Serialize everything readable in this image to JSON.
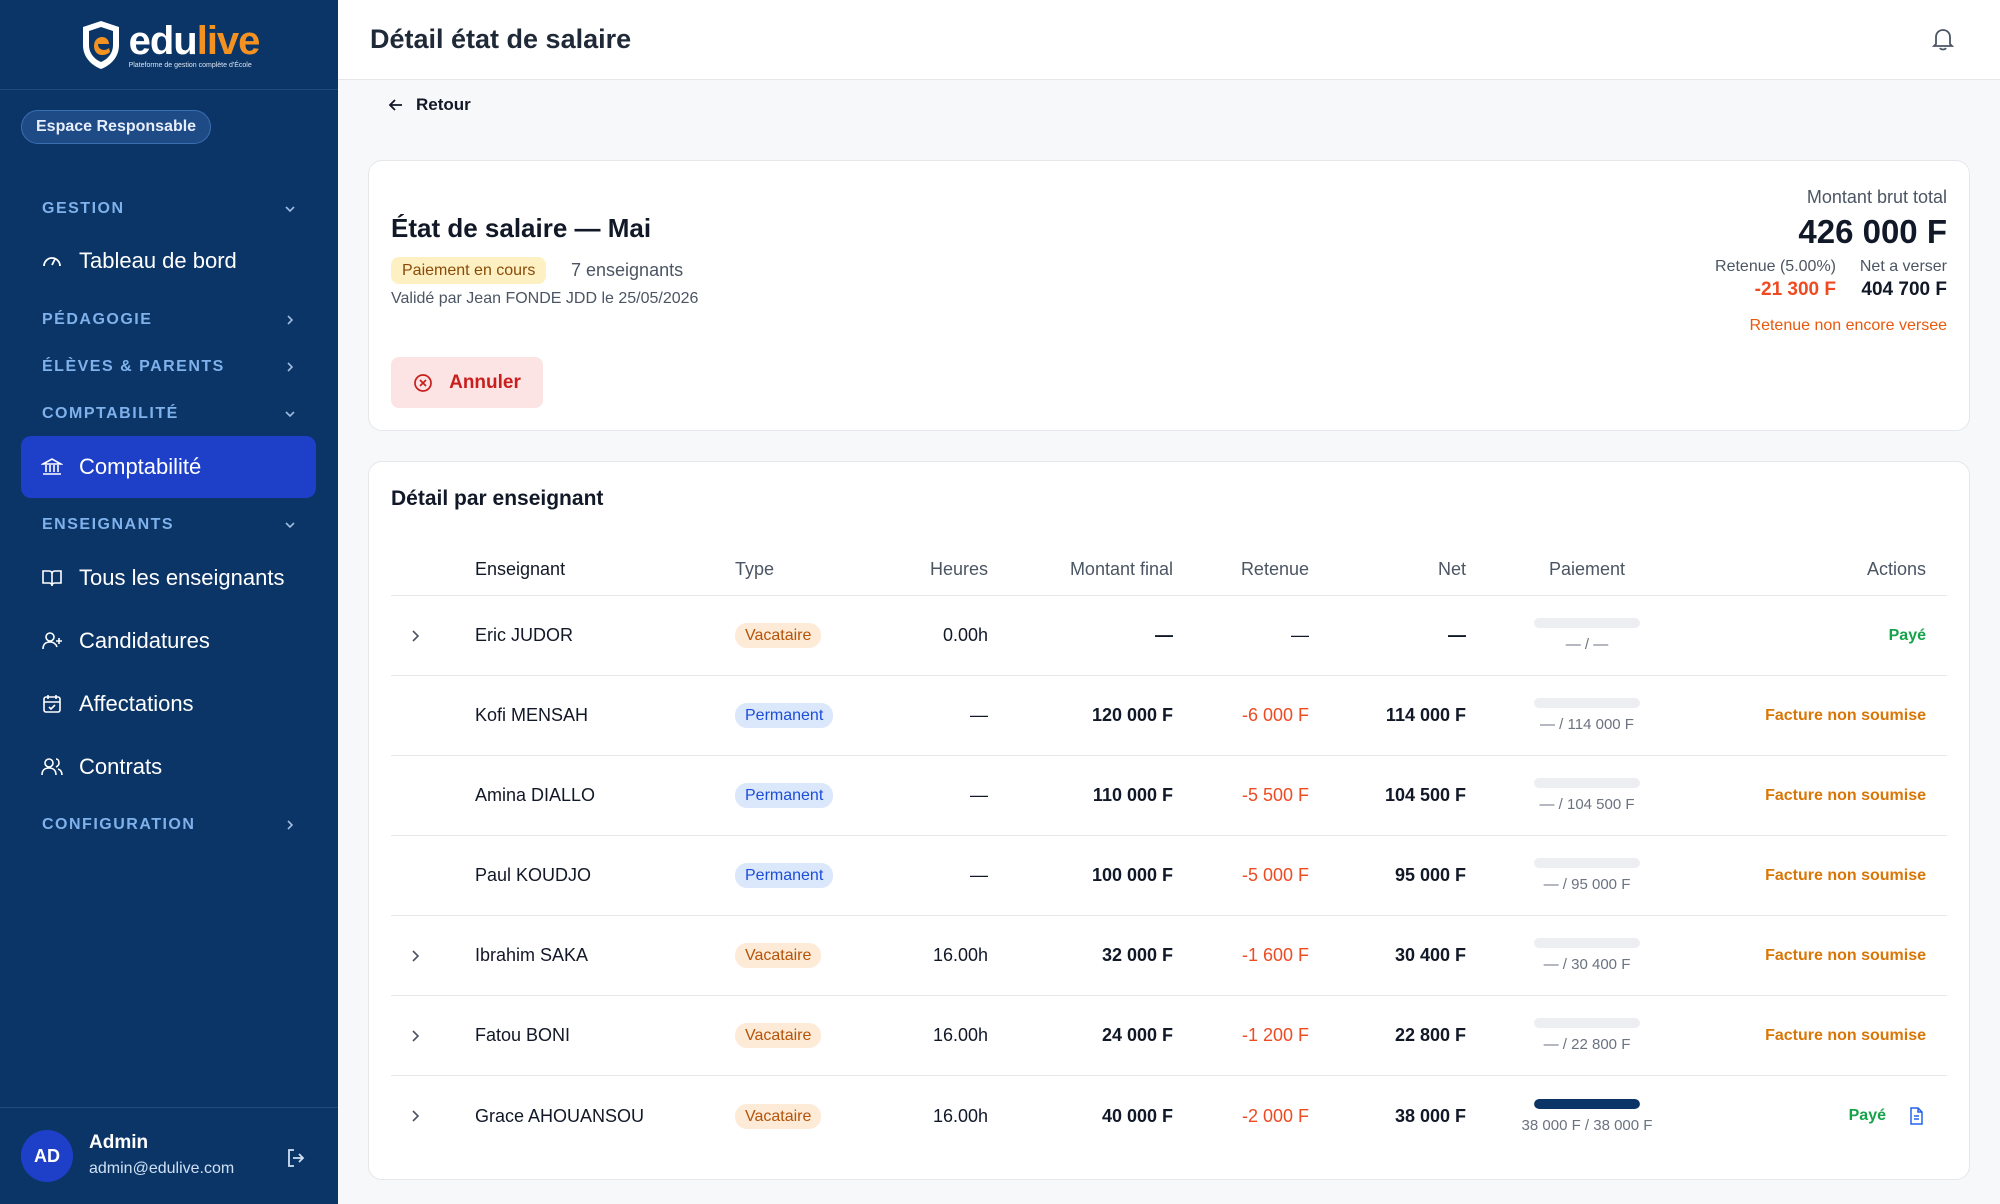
{
  "brand": {
    "name_part1": "edu",
    "name_part2": "live",
    "tagline": "Plateforme de gestion complète d'École"
  },
  "sidebar": {
    "space_badge": "Espace Responsable",
    "sections": {
      "gestion": "GESTION",
      "pedagogie": "PÉDAGOGIE",
      "eleves": "ÉLÈVES & PARENTS",
      "comptabilite": "COMPTABILITÉ",
      "enseignants": "ENSEIGNANTS",
      "configuration": "CONFIGURATION"
    },
    "items": {
      "tableau": "Tableau de bord",
      "comptabilite": "Comptabilité",
      "tous": "Tous les enseignants",
      "candidatures": "Candidatures",
      "affectations": "Affectations",
      "contrats": "Contrats"
    },
    "user": {
      "initials": "AD",
      "name": "Admin",
      "email": "admin@edulive.com"
    }
  },
  "header": {
    "title": "Détail état de salaire"
  },
  "back_label": "Retour",
  "summary": {
    "title": "État de salaire — Mai",
    "status": "Paiement en cours",
    "teacher_count": "7 enseignants",
    "validated_by": "Validé par Jean FONDE JDD le 25/05/2026",
    "cancel_label": "Annuler",
    "gross_label": "Montant brut total",
    "gross_value": "426 000 F",
    "retention_label": "Retenue (5.00%)",
    "retention_value": "-21 300 F",
    "net_label": "Net a verser",
    "net_value": "404 700 F",
    "retention_note": "Retenue non encore versee"
  },
  "detail": {
    "title": "Détail par enseignant",
    "columns": {
      "teacher": "Enseignant",
      "type": "Type",
      "hours": "Heures",
      "amount": "Montant final",
      "retention": "Retenue",
      "net": "Net",
      "payment": "Paiement",
      "actions": "Actions"
    },
    "rows": [
      {
        "name": "Eric JUDOR",
        "type": "Vacataire",
        "hours": "0.00h",
        "amount": "—",
        "retention": "—",
        "net": "—",
        "pay_text": "— / —",
        "pay_progress": 0,
        "action": "Payé"
      },
      {
        "name": "Kofi MENSAH",
        "type": "Permanent",
        "hours": "—",
        "amount": "120 000 F",
        "retention": "-6 000 F",
        "net": "114 000 F",
        "pay_text": "— / 114 000 F",
        "pay_progress": 0,
        "action": "Facture non soumise"
      },
      {
        "name": "Amina DIALLO",
        "type": "Permanent",
        "hours": "—",
        "amount": "110 000 F",
        "retention": "-5 500 F",
        "net": "104 500 F",
        "pay_text": "— / 104 500 F",
        "pay_progress": 0,
        "action": "Facture non soumise"
      },
      {
        "name": "Paul KOUDJO",
        "type": "Permanent",
        "hours": "—",
        "amount": "100 000 F",
        "retention": "-5 000 F",
        "net": "95 000 F",
        "pay_text": "— / 95 000 F",
        "pay_progress": 0,
        "action": "Facture non soumise"
      },
      {
        "name": "Ibrahim SAKA",
        "type": "Vacataire",
        "hours": "16.00h",
        "amount": "32 000 F",
        "retention": "-1 600 F",
        "net": "30 400 F",
        "pay_text": "— / 30 400 F",
        "pay_progress": 0,
        "action": "Facture non soumise"
      },
      {
        "name": "Fatou BONI",
        "type": "Vacataire",
        "hours": "16.00h",
        "amount": "24 000 F",
        "retention": "-1 200 F",
        "net": "22 800 F",
        "pay_text": "— / 22 800 F",
        "pay_progress": 0,
        "action": "Facture non soumise"
      },
      {
        "name": "Grace AHOUANSOU",
        "type": "Vacataire",
        "hours": "16.00h",
        "amount": "40 000 F",
        "retention": "-2 000 F",
        "net": "38 000 F",
        "pay_text": "38 000 F / 38 000 F",
        "pay_progress": 100,
        "action": "Payé"
      }
    ]
  }
}
